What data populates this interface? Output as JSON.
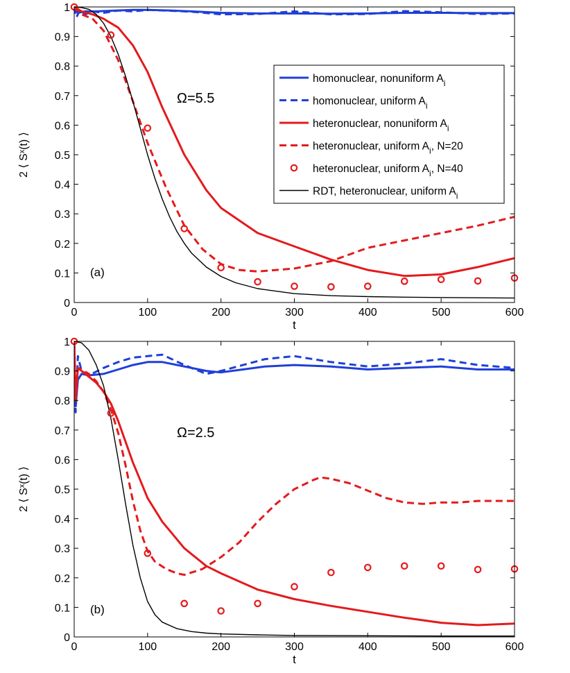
{
  "chart_data": [
    {
      "type": "line",
      "panel_label": "(a)",
      "annotation": "Ω=5.5",
      "xlabel": "t",
      "ylabel": "2 ⟨ Sˣ(t) ⟩",
      "xlim": [
        0,
        600
      ],
      "ylim": [
        0,
        1
      ],
      "xticks": [
        0,
        100,
        200,
        300,
        400,
        500,
        600
      ],
      "yticks": [
        0,
        0.1,
        0.2,
        0.3,
        0.4,
        0.5,
        0.6,
        0.7,
        0.8,
        0.9,
        1
      ],
      "legend_position": "top-right",
      "series": [
        {
          "name": "homonuclear, nonuniform A_i",
          "color": "#1f3fd8",
          "style": "solid",
          "x": [
            0,
            5,
            15,
            30,
            50,
            80,
            100,
            130,
            160,
            200,
            250,
            300,
            350,
            400,
            450,
            500,
            550,
            600
          ],
          "y": [
            1.0,
            0.98,
            0.985,
            0.985,
            0.987,
            0.99,
            0.99,
            0.988,
            0.985,
            0.98,
            0.978,
            0.978,
            0.977,
            0.978,
            0.98,
            0.98,
            0.979,
            0.979
          ]
        },
        {
          "name": "homonuclear, uniform A_i",
          "color": "#1f3fd8",
          "style": "dashed",
          "x": [
            0,
            3,
            8,
            15,
            25,
            40,
            60,
            80,
            100,
            130,
            160,
            200,
            250,
            300,
            350,
            400,
            450,
            500,
            550,
            600
          ],
          "y": [
            1.0,
            0.965,
            0.99,
            0.975,
            0.985,
            0.98,
            0.988,
            0.985,
            0.99,
            0.987,
            0.984,
            0.975,
            0.976,
            0.985,
            0.975,
            0.976,
            0.986,
            0.982,
            0.976,
            0.978
          ]
        },
        {
          "name": "heteronuclear, nonuniform A_i",
          "color": "#e41a1c",
          "style": "solid",
          "x": [
            0,
            10,
            25,
            40,
            60,
            80,
            100,
            120,
            150,
            180,
            200,
            250,
            300,
            350,
            400,
            450,
            500,
            550,
            600
          ],
          "y": [
            1.0,
            0.985,
            0.975,
            0.96,
            0.93,
            0.87,
            0.78,
            0.66,
            0.5,
            0.38,
            0.32,
            0.235,
            0.19,
            0.145,
            0.11,
            0.09,
            0.095,
            0.12,
            0.15
          ]
        },
        {
          "name": "heteronuclear, uniform A_i, N=20",
          "color": "#e41a1c",
          "style": "dashed",
          "x": [
            0,
            10,
            25,
            40,
            60,
            80,
            100,
            125,
            150,
            175,
            200,
            225,
            250,
            300,
            350,
            400,
            450,
            500,
            550,
            600
          ],
          "y": [
            1.0,
            0.975,
            0.96,
            0.92,
            0.82,
            0.68,
            0.54,
            0.39,
            0.26,
            0.18,
            0.13,
            0.11,
            0.105,
            0.115,
            0.14,
            0.185,
            0.21,
            0.235,
            0.26,
            0.29
          ]
        },
        {
          "name": "heteronuclear, uniform A_i, N=40",
          "color": "#e41a1c",
          "style": "markers",
          "x": [
            0,
            50,
            100,
            150,
            200,
            250,
            300,
            350,
            400,
            450,
            500,
            550,
            600
          ],
          "y": [
            1.0,
            0.905,
            0.59,
            0.25,
            0.118,
            0.07,
            0.055,
            0.053,
            0.055,
            0.072,
            0.078,
            0.073,
            0.083
          ]
        },
        {
          "name": "RDT, heteronuclear, uniform A_i",
          "color": "#000000",
          "style": "solid-thin",
          "x": [
            0,
            10,
            20,
            30,
            40,
            50,
            60,
            70,
            80,
            90,
            100,
            110,
            120,
            130,
            140,
            150,
            160,
            180,
            200,
            220,
            250,
            300,
            350,
            400,
            450,
            500,
            550,
            600
          ],
          "y": [
            1.0,
            0.998,
            0.992,
            0.975,
            0.945,
            0.9,
            0.84,
            0.765,
            0.68,
            0.59,
            0.5,
            0.42,
            0.35,
            0.29,
            0.24,
            0.2,
            0.167,
            0.12,
            0.088,
            0.067,
            0.047,
            0.03,
            0.023,
            0.02,
            0.018,
            0.017,
            0.016,
            0.015
          ]
        }
      ]
    },
    {
      "type": "line",
      "panel_label": "(b)",
      "annotation": "Ω=2.5",
      "xlabel": "t",
      "ylabel": "2 ⟨ Sˣ(t) ⟩",
      "xlim": [
        0,
        600
      ],
      "ylim": [
        0,
        1
      ],
      "xticks": [
        0,
        100,
        200,
        300,
        400,
        500,
        600
      ],
      "yticks": [
        0,
        0.1,
        0.2,
        0.3,
        0.4,
        0.5,
        0.6,
        0.7,
        0.8,
        0.9,
        1
      ],
      "series": [
        {
          "name": "homonuclear, nonuniform A_i",
          "color": "#1f3fd8",
          "style": "solid",
          "x": [
            0,
            2,
            5,
            10,
            20,
            40,
            60,
            80,
            100,
            120,
            150,
            180,
            200,
            230,
            260,
            300,
            350,
            400,
            450,
            500,
            550,
            600
          ],
          "y": [
            1.0,
            0.78,
            0.87,
            0.89,
            0.885,
            0.89,
            0.905,
            0.92,
            0.93,
            0.93,
            0.915,
            0.9,
            0.895,
            0.905,
            0.915,
            0.92,
            0.915,
            0.905,
            0.91,
            0.915,
            0.905,
            0.905
          ]
        },
        {
          "name": "homonuclear, uniform A_i",
          "color": "#1f3fd8",
          "style": "dashed",
          "x": [
            0,
            2,
            5,
            10,
            20,
            40,
            60,
            80,
            100,
            120,
            150,
            180,
            200,
            230,
            260,
            300,
            350,
            400,
            450,
            500,
            550,
            600
          ],
          "y": [
            1.0,
            0.76,
            0.95,
            0.9,
            0.885,
            0.91,
            0.93,
            0.945,
            0.95,
            0.955,
            0.92,
            0.89,
            0.9,
            0.92,
            0.94,
            0.95,
            0.93,
            0.915,
            0.925,
            0.94,
            0.92,
            0.91
          ]
        },
        {
          "name": "heteronuclear, nonuniform A_i",
          "color": "#e41a1c",
          "style": "solid",
          "x": [
            0,
            2,
            5,
            10,
            20,
            30,
            40,
            50,
            60,
            70,
            80,
            90,
            100,
            120,
            150,
            180,
            200,
            250,
            300,
            350,
            400,
            450,
            500,
            550,
            600
          ],
          "y": [
            1.0,
            0.8,
            0.91,
            0.9,
            0.88,
            0.86,
            0.83,
            0.79,
            0.73,
            0.66,
            0.59,
            0.53,
            0.47,
            0.39,
            0.3,
            0.24,
            0.215,
            0.16,
            0.128,
            0.105,
            0.085,
            0.065,
            0.048,
            0.04,
            0.045
          ]
        },
        {
          "name": "heteronuclear, uniform A_i, N=20",
          "color": "#e41a1c",
          "style": "dashed",
          "x": [
            0,
            2,
            5,
            10,
            20,
            30,
            40,
            50,
            60,
            70,
            80,
            90,
            100,
            110,
            125,
            140,
            150,
            175,
            200,
            225,
            250,
            275,
            300,
            325,
            335,
            350,
            375,
            400,
            425,
            450,
            475,
            500,
            525,
            550,
            575,
            600
          ],
          "y": [
            1.0,
            0.8,
            0.91,
            0.905,
            0.89,
            0.865,
            0.83,
            0.77,
            0.69,
            0.58,
            0.46,
            0.36,
            0.29,
            0.255,
            0.23,
            0.215,
            0.21,
            0.23,
            0.27,
            0.32,
            0.39,
            0.45,
            0.5,
            0.53,
            0.54,
            0.535,
            0.52,
            0.495,
            0.47,
            0.455,
            0.45,
            0.455,
            0.455,
            0.46,
            0.46,
            0.46
          ]
        },
        {
          "name": "heteronuclear, uniform A_i, N=40",
          "color": "#e41a1c",
          "style": "markers",
          "x": [
            0,
            50,
            100,
            150,
            200,
            250,
            300,
            350,
            400,
            450,
            500,
            550,
            600
          ],
          "y": [
            1.0,
            0.757,
            0.283,
            0.113,
            0.088,
            0.113,
            0.17,
            0.218,
            0.235,
            0.24,
            0.24,
            0.228,
            0.23
          ]
        },
        {
          "name": "RDT, heteronuclear, uniform A_i",
          "color": "#000000",
          "style": "solid-thin",
          "x": [
            0,
            10,
            20,
            30,
            40,
            50,
            60,
            70,
            80,
            90,
            100,
            110,
            120,
            140,
            160,
            180,
            200,
            250,
            300,
            400,
            500,
            600
          ],
          "y": [
            1.0,
            0.995,
            0.97,
            0.92,
            0.85,
            0.74,
            0.6,
            0.45,
            0.31,
            0.2,
            0.12,
            0.075,
            0.05,
            0.028,
            0.018,
            0.013,
            0.01,
            0.007,
            0.005,
            0.004,
            0.003,
            0.003
          ]
        }
      ]
    }
  ],
  "legend": {
    "entries": [
      {
        "pre": "homonuclear, nonuniform A",
        "sub": "i",
        "post": "",
        "color": "#1f3fd8",
        "style": "solid"
      },
      {
        "pre": "homonuclear, uniform A",
        "sub": "i",
        "post": "",
        "color": "#1f3fd8",
        "style": "dashed"
      },
      {
        "pre": "heteronuclear, nonuniform A",
        "sub": "i",
        "post": "",
        "color": "#e41a1c",
        "style": "solid"
      },
      {
        "pre": "heteronuclear, uniform A",
        "sub": "i",
        "post": ", N=20",
        "color": "#e41a1c",
        "style": "dashed"
      },
      {
        "pre": "heteronuclear, uniform A",
        "sub": "i",
        "post": ", N=40",
        "color": "#e41a1c",
        "style": "markers"
      },
      {
        "pre": "RDT, heteronuclear, uniform A",
        "sub": "i",
        "post": "",
        "color": "#000000",
        "style": "solid-thin"
      }
    ]
  }
}
